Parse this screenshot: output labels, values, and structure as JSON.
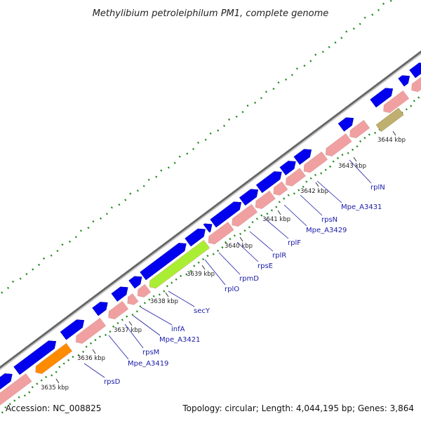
{
  "title": "Methylibium petroleiphilum PM1, complete genome",
  "footer": {
    "accession": "Accession: NC_008825",
    "summary": "Topology: circular; Length: 4,044,195 bp; Genes: 3,864"
  },
  "colors": {
    "backbone": "#888888",
    "forward_gene": "#0000ee",
    "reverse_gene": "#f0a0a0",
    "highlight_gene": "#aaee33",
    "orange_gene": "#ff8c00",
    "tan_gene": "#c0b070",
    "gc_dots": "#1e8a1e",
    "label": "#1a1aa8"
  },
  "ticks": [
    {
      "label": "3635 kbp"
    },
    {
      "label": "3636 kbp"
    },
    {
      "label": "3637 kbp"
    },
    {
      "label": "3638 kbp"
    },
    {
      "label": "3639 kbp"
    },
    {
      "label": "3640 kbp"
    },
    {
      "label": "3641 kbp"
    },
    {
      "label": "3642 kbp"
    },
    {
      "label": "3643 kbp"
    },
    {
      "label": "3644 kbp"
    }
  ],
  "gene_labels": [
    {
      "name": "rpsD"
    },
    {
      "name": "Mpe_A3419"
    },
    {
      "name": "rpsM"
    },
    {
      "name": "Mpe_A3421"
    },
    {
      "name": "infA"
    },
    {
      "name": "secY"
    },
    {
      "name": "rplO"
    },
    {
      "name": "rpmD"
    },
    {
      "name": "rpsE"
    },
    {
      "name": "rplR"
    },
    {
      "name": "rplF"
    },
    {
      "name": "Mpe_A3429"
    },
    {
      "name": "rpsN"
    },
    {
      "name": "Mpe_A3431"
    },
    {
      "name": "rplN"
    }
  ]
}
